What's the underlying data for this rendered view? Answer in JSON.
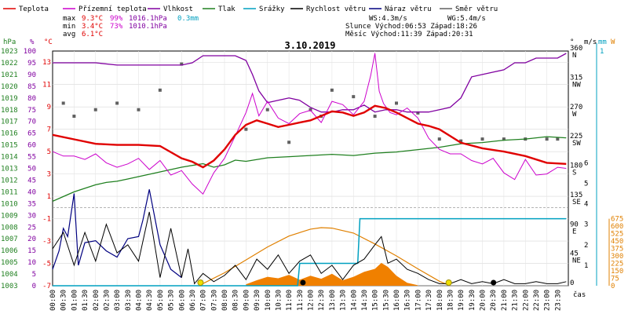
{
  "chart_data": {
    "type": "line",
    "title": "3.10.2019",
    "legend": [
      {
        "label": "Teplota",
        "color": "#e00000"
      },
      {
        "label": "Přízemní teplota",
        "color": "#cc00cc"
      },
      {
        "label": "Vlhkost",
        "color": "#8000a0"
      },
      {
        "label": "Tlak",
        "color": "#208020"
      },
      {
        "label": "Srážky",
        "color": "#00a0c0"
      },
      {
        "label": "Rychlost větru",
        "color": "#000000"
      },
      {
        "label": "Náraz větru",
        "color": "#000080"
      },
      {
        "label": "Směr větru",
        "color": "#606060"
      }
    ],
    "stats": {
      "max_label": "max",
      "min_label": "min",
      "avg_label": "avg",
      "max_temp": "9.3°C",
      "max_hum": "99%",
      "max_press": "1016.1hPa",
      "max_rain": "0.3mm",
      "min_temp": "3.4°C",
      "min_hum": "73%",
      "min_press": "1010.1hPa",
      "avg_temp": "6.1°C",
      "ws": "WS:4.3m/s",
      "wg": "WG:5.4m/s",
      "sun_line": "Slunce Východ:06:53 Západ:18:26",
      "moon_line": "Měsíc  Východ:11:39 Západ:20:31"
    },
    "axes": {
      "hpa": {
        "unit": "hPa",
        "ticks": [
          "1023",
          "1022",
          "1021",
          "1020",
          "1019",
          "1018",
          "1017",
          "1016",
          "1015",
          "1014",
          "1013",
          "1012",
          "1011",
          "1010",
          "1009",
          "1008",
          "1007",
          "1006",
          "1005",
          "1004",
          "1003"
        ]
      },
      "pct": {
        "unit": "%",
        "ticks": [
          "100",
          "95",
          "90",
          "85",
          "80",
          "75",
          "70",
          "65",
          "60",
          "55",
          "50",
          "45",
          "40",
          "35",
          "30",
          "25",
          "20",
          "15",
          "10",
          "5",
          "0"
        ]
      },
      "temp": {
        "unit": "°C",
        "ticks": [
          "13",
          "11",
          "9",
          "7",
          "5",
          "3",
          "1",
          "-1",
          "-3",
          "-5",
          "-7"
        ]
      },
      "dir": {
        "unit": "°",
        "ticks": [
          "360",
          "315",
          "270",
          "225",
          "180",
          "135",
          "90",
          "45",
          "0"
        ],
        "labels": [
          "N",
          "NW",
          "W",
          "SW",
          "S",
          "SE",
          "E",
          "NE",
          ""
        ]
      },
      "ms": {
        "unit": "m/s",
        "ticks": [
          "6",
          "5",
          "4",
          "3",
          "2",
          "1"
        ]
      },
      "mm": {
        "unit": "mm",
        "ticks": [
          "1"
        ]
      },
      "wm2": {
        "unit": "W",
        "ticks": [
          "675",
          "600",
          "525",
          "450",
          "375",
          "300",
          "225",
          "150",
          "75",
          "0"
        ]
      },
      "time_label": "čas",
      "time_ticks": [
        "00:00",
        "00:30",
        "01:00",
        "01:30",
        "02:00",
        "02:30",
        "03:00",
        "03:30",
        "04:00",
        "04:30",
        "05:00",
        "05:30",
        "06:00",
        "06:30",
        "07:00",
        "07:30",
        "08:00",
        "08:30",
        "09:00",
        "09:30",
        "10:00",
        "10:30",
        "11:00",
        "11:30",
        "12:00",
        "12:30",
        "13:00",
        "13:30",
        "14:00",
        "14:30",
        "15:00",
        "15:30",
        "16:00",
        "16:30",
        "17:00",
        "17:30",
        "18:00",
        "18:30",
        "19:00",
        "19:30",
        "20:00",
        "20:30",
        "21:00",
        "21:30",
        "22:00",
        "22:30",
        "23:00",
        "23:30"
      ]
    },
    "series": {
      "temperature": {
        "x": [
          0,
          1,
          2,
          3,
          4,
          5,
          6,
          6.5,
          7,
          7.5,
          8,
          8.5,
          9,
          9.5,
          10,
          10.5,
          11,
          11.5,
          12,
          12.5,
          13,
          13.5,
          14,
          14.5,
          15,
          15.5,
          16,
          16.5,
          17,
          17.5,
          18,
          19,
          20,
          21,
          22,
          23,
          23.9
        ],
        "y": [
          6.5,
          6.1,
          5.7,
          5.6,
          5.6,
          5.5,
          4.4,
          4.1,
          3.6,
          4.2,
          5.2,
          6.5,
          7.4,
          7.8,
          7.5,
          7.2,
          7.4,
          7.6,
          7.8,
          8.2,
          8.6,
          8.5,
          8.2,
          8.5,
          9.1,
          8.9,
          8.5,
          8.0,
          7.5,
          7.3,
          7.0,
          5.8,
          5.3,
          5.0,
          4.6,
          4.0,
          3.9
        ]
      },
      "ground_temperature": {
        "x": [
          0,
          0.5,
          1,
          1.5,
          2,
          2.5,
          3,
          3.5,
          4,
          4.5,
          5,
          5.5,
          6,
          6.5,
          7,
          7.5,
          8,
          8.5,
          9,
          9.3,
          9.6,
          10,
          10.5,
          11,
          11.5,
          12,
          12.5,
          13,
          13.5,
          14,
          14.5,
          14.8,
          15,
          15.2,
          15.4,
          15.7,
          16,
          16.5,
          17,
          17.5,
          18,
          18.5,
          19,
          19.5,
          20,
          20.5,
          21,
          21.5,
          22,
          22.5,
          23,
          23.5,
          23.9
        ],
        "y": [
          5.0,
          4.6,
          4.6,
          4.3,
          4.8,
          4.0,
          3.6,
          3.9,
          4.4,
          3.4,
          4.2,
          2.9,
          3.3,
          2.1,
          1.2,
          3.1,
          4.4,
          6.4,
          8.5,
          10.2,
          8.2,
          9.5,
          8.0,
          7.5,
          8.4,
          8.7,
          7.6,
          9.5,
          9.2,
          8.3,
          9.5,
          11.8,
          13.8,
          10.4,
          9.3,
          8.5,
          8.3,
          8.9,
          8.0,
          6.2,
          5.2,
          4.8,
          4.8,
          4.2,
          3.9,
          4.4,
          3.1,
          2.5,
          4.3,
          2.9,
          3.0,
          3.6,
          3.5
        ]
      },
      "humidity": {
        "x": [
          0,
          1,
          2,
          3,
          4,
          5,
          6,
          6.5,
          7,
          7.5,
          8,
          8.5,
          9,
          9.3,
          9.6,
          10,
          10.5,
          11,
          11.5,
          12,
          12.5,
          13,
          13.5,
          14,
          14.5,
          15,
          15.5,
          16,
          16.5,
          17,
          17.5,
          18,
          18.5,
          19,
          19.5,
          20,
          20.5,
          21,
          21.5,
          22,
          22.5,
          23,
          23.5,
          23.9
        ],
        "y": [
          95,
          95,
          95,
          94,
          94,
          94,
          94,
          95,
          98,
          98,
          98,
          98,
          96,
          90,
          83,
          78,
          79,
          80,
          79,
          76,
          74,
          74,
          75,
          75,
          77,
          74,
          75,
          75,
          74,
          74,
          74,
          75,
          76,
          80,
          89,
          90,
          91,
          92,
          95,
          95,
          97,
          97,
          97,
          99
        ]
      },
      "pressure": {
        "x": [
          0,
          0.5,
          1,
          1.5,
          2,
          2.5,
          3,
          3.5,
          4,
          5,
          6,
          7,
          7.5,
          8,
          8.5,
          9,
          10,
          11,
          12,
          13,
          14,
          15,
          16,
          17,
          18,
          19,
          20,
          21,
          22,
          23,
          23.9
        ],
        "y": [
          1010.2,
          1010.6,
          1011.0,
          1011.3,
          1011.6,
          1011.8,
          1011.9,
          1012.1,
          1012.3,
          1012.7,
          1013.1,
          1013.4,
          1013.1,
          1013.3,
          1013.7,
          1013.6,
          1013.9,
          1014.0,
          1014.1,
          1014.2,
          1014.1,
          1014.3,
          1014.4,
          1014.6,
          1014.8,
          1015.1,
          1015.2,
          1015.4,
          1015.5,
          1015.7,
          1015.6
        ]
      },
      "rain": {
        "x": [
          0,
          11.4,
          11.5,
          14.2,
          14.3,
          23.9
        ],
        "y": [
          0,
          0,
          0.1,
          0.1,
          0.3,
          0.3
        ]
      },
      "wind_speed": {
        "x": [
          0,
          0.5,
          1,
          1.5,
          2,
          2.5,
          3,
          3.5,
          4,
          4.5,
          5,
          5.5,
          6,
          6.3,
          6.6,
          7,
          7.5,
          8,
          8.5,
          9,
          9.5,
          10,
          10.5,
          11,
          11.5,
          12,
          12.5,
          13,
          13.5,
          14,
          14.5,
          15,
          15.3,
          15.6,
          16,
          16.5,
          17,
          17.5,
          18,
          18.5,
          19,
          19.5,
          20,
          20.5,
          21,
          21.5,
          22,
          22.5,
          23,
          23.5,
          23.9
        ],
        "y": [
          1.8,
          2.6,
          1.0,
          2.6,
          1.2,
          3.0,
          1.6,
          2.0,
          1.2,
          3.6,
          0.4,
          2.8,
          0.4,
          1.8,
          0.1,
          0.6,
          0.2,
          0.5,
          1.0,
          0.3,
          1.3,
          0.8,
          1.5,
          0.6,
          1.2,
          1.5,
          0.6,
          1.0,
          0.3,
          1.0,
          1.3,
          2.0,
          2.4,
          1.1,
          1.3,
          0.8,
          0.6,
          0.3,
          0.1,
          0.1,
          0.3,
          0.1,
          0.2,
          0.1,
          0.3,
          0.1,
          0.1,
          0.2,
          0.1,
          0.1,
          0.2
        ]
      },
      "wind_gust": {
        "x": [
          0,
          0.3,
          0.5,
          0.7,
          1,
          1.2,
          1.5,
          2,
          2.5,
          3,
          3.5,
          4,
          4.2,
          4.5,
          5,
          5.5,
          6
        ],
        "y": [
          0.8,
          1.7,
          2.8,
          2.4,
          4.5,
          1.0,
          2.1,
          2.2,
          1.7,
          1.4,
          2.3,
          2.4,
          3.2,
          4.7,
          2.0,
          0.8,
          0.4
        ]
      },
      "wind_direction": {
        "x": [
          0.5,
          1,
          2,
          3,
          4,
          5,
          6,
          9,
          10,
          11,
          12,
          12.5,
          13,
          14,
          15,
          16,
          17,
          18,
          19,
          20,
          21,
          22,
          23,
          23.5
        ],
        "y": [
          280,
          260,
          270,
          280,
          270,
          300,
          340,
          240,
          270,
          220,
          270,
          260,
          300,
          290,
          260,
          280,
          265,
          225,
          222,
          225,
          225,
          225,
          225,
          225
        ]
      },
      "solar": {
        "x": [
          6.8,
          8,
          9,
          10,
          11,
          12,
          12.5,
          13,
          14,
          15,
          16,
          17,
          18,
          18.5
        ],
        "y": [
          0,
          130,
          260,
          390,
          500,
          570,
          585,
          580,
          530,
          420,
          300,
          170,
          45,
          0
        ]
      },
      "solar_measured": {
        "x": [
          9,
          9.5,
          10,
          10.5,
          11,
          11.5,
          12,
          12.5,
          13,
          13.5,
          14,
          14.5,
          15,
          15.3,
          15.6,
          16,
          16.5,
          17
        ],
        "y": [
          15,
          55,
          90,
          75,
          110,
          60,
          100,
          70,
          120,
          55,
          90,
          140,
          170,
          230,
          190,
          100,
          30,
          5
        ]
      }
    },
    "time_range": [
      0,
      24
    ],
    "temp_range": [
      -7,
      14
    ],
    "markers": [
      "sunrise 06:53",
      "sunset 18:26",
      "moonrise 11:39",
      "moonset 20:31"
    ]
  }
}
